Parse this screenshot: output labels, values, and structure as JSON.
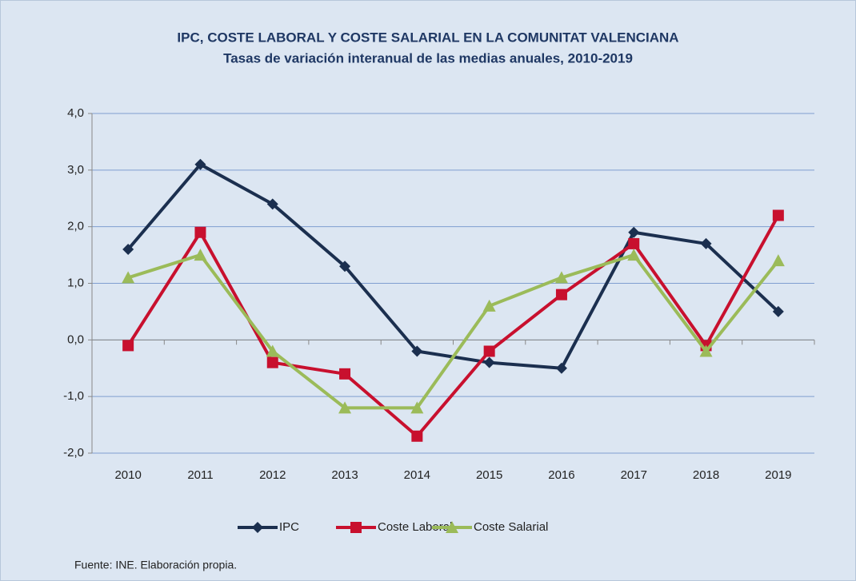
{
  "chart_data": {
    "type": "line",
    "title": "IPC, COSTE LABORAL Y COSTE SALARIAL EN LA COMUNITAT VALENCIANA",
    "subtitle": "Tasas de variación interanual de las medias anuales, 2010-2019",
    "categories": [
      "2010",
      "2011",
      "2012",
      "2013",
      "2014",
      "2015",
      "2016",
      "2017",
      "2018",
      "2019"
    ],
    "series": [
      {
        "name": "IPC",
        "color": "#1b2f4f",
        "marker": "diamond",
        "values": [
          1.6,
          3.1,
          2.4,
          1.3,
          -0.2,
          -0.4,
          -0.5,
          1.9,
          1.7,
          0.5
        ]
      },
      {
        "name": "Coste Laboral",
        "color": "#c8102e",
        "marker": "square",
        "values": [
          -0.1,
          1.9,
          -0.4,
          -0.6,
          -1.7,
          -0.2,
          0.8,
          1.7,
          -0.1,
          2.2
        ]
      },
      {
        "name": "Coste Salarial",
        "color": "#9bbb59",
        "marker": "triangle",
        "values": [
          1.1,
          1.5,
          -0.2,
          -1.2,
          -1.2,
          0.6,
          1.1,
          1.5,
          -0.2,
          1.4
        ]
      }
    ],
    "ylim": [
      -2,
      4
    ],
    "yticks": [
      {
        "value": -2,
        "label": "-2,0"
      },
      {
        "value": -1,
        "label": "-1,0"
      },
      {
        "value": 0,
        "label": "0,0"
      },
      {
        "value": 1,
        "label": "1,0"
      },
      {
        "value": 2,
        "label": "2,0"
      },
      {
        "value": 3,
        "label": "3,0"
      },
      {
        "value": 4,
        "label": "4,0"
      }
    ],
    "grid": true,
    "legend": "bottom",
    "source": "Fuente: INE. Elaboración propia."
  }
}
